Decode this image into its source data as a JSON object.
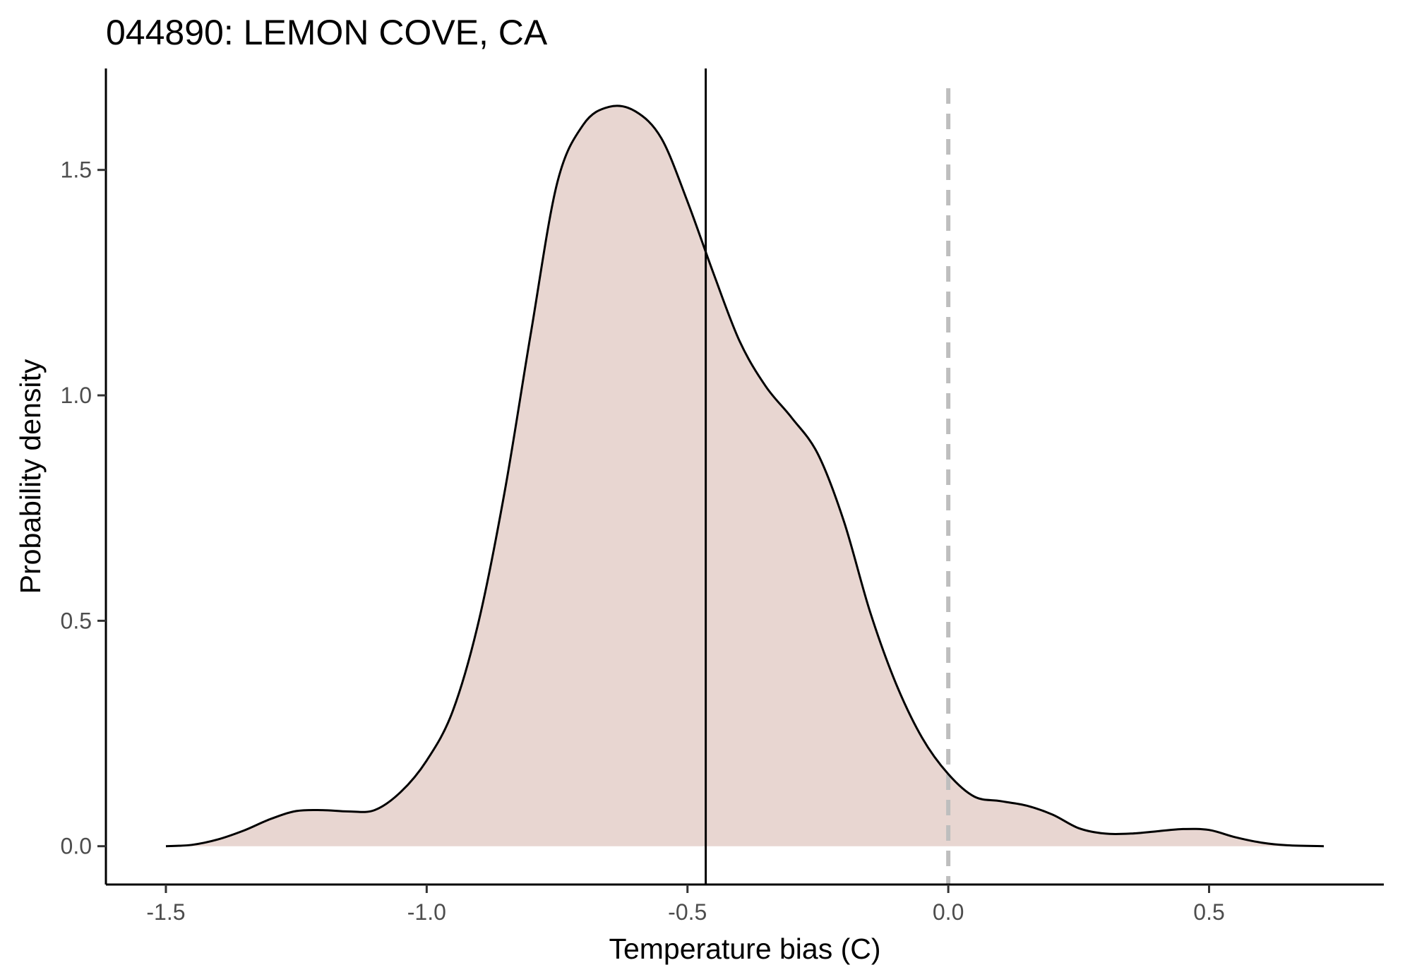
{
  "chart_data": {
    "type": "area",
    "title": "044890: LEMON COVE, CA",
    "xlabel": "Temperature bias (C)",
    "ylabel": "Probability density",
    "xlim": [
      -1.615,
      0.835
    ],
    "ylim": [
      -0.085,
      1.725
    ],
    "x_ticks": [
      -1.5,
      -1.0,
      -0.5,
      0.0,
      0.5
    ],
    "x_tick_labels": [
      "-1.5",
      "-1.0",
      "-0.5",
      "0.0",
      "0.5"
    ],
    "y_ticks": [
      0.0,
      0.5,
      1.0,
      1.5
    ],
    "y_tick_labels": [
      "0.0",
      "0.5",
      "1.0",
      "1.5"
    ],
    "grid": false,
    "fill_color": "#e8d6d1",
    "line_color": "#000000",
    "density": {
      "x": [
        -1.5,
        -1.45,
        -1.4,
        -1.35,
        -1.3,
        -1.25,
        -1.2,
        -1.15,
        -1.1,
        -1.05,
        -1.0,
        -0.95,
        -0.9,
        -0.85,
        -0.8,
        -0.75,
        -0.7,
        -0.65,
        -0.6,
        -0.55,
        -0.5,
        -0.45,
        -0.4,
        -0.35,
        -0.3,
        -0.25,
        -0.2,
        -0.15,
        -0.1,
        -0.05,
        0.0,
        0.05,
        0.1,
        0.15,
        0.2,
        0.25,
        0.3,
        0.35,
        0.4,
        0.45,
        0.5,
        0.55,
        0.6,
        0.65,
        0.72
      ],
      "y": [
        0.0,
        0.003,
        0.015,
        0.035,
        0.06,
        0.078,
        0.08,
        0.077,
        0.08,
        0.12,
        0.19,
        0.3,
        0.5,
        0.79,
        1.14,
        1.47,
        1.6,
        1.64,
        1.63,
        1.57,
        1.43,
        1.27,
        1.12,
        1.02,
        0.95,
        0.87,
        0.72,
        0.52,
        0.36,
        0.24,
        0.16,
        0.11,
        0.1,
        0.09,
        0.07,
        0.04,
        0.028,
        0.028,
        0.033,
        0.038,
        0.036,
        0.02,
        0.008,
        0.002,
        0.0
      ]
    },
    "reference_lines": [
      {
        "x": -0.465,
        "style": "solid",
        "color": "#000000"
      },
      {
        "x": 0.0,
        "style": "dashed",
        "color": "#bebebe"
      }
    ]
  }
}
